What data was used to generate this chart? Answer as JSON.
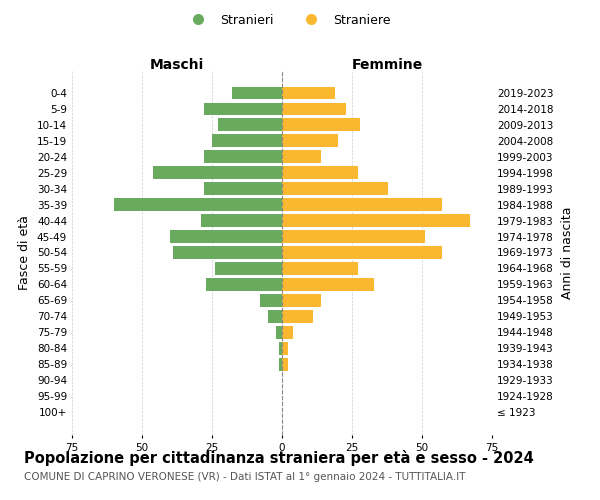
{
  "age_groups": [
    "100+",
    "95-99",
    "90-94",
    "85-89",
    "80-84",
    "75-79",
    "70-74",
    "65-69",
    "60-64",
    "55-59",
    "50-54",
    "45-49",
    "40-44",
    "35-39",
    "30-34",
    "25-29",
    "20-24",
    "15-19",
    "10-14",
    "5-9",
    "0-4"
  ],
  "birth_years": [
    "≤ 1923",
    "1924-1928",
    "1929-1933",
    "1934-1938",
    "1939-1943",
    "1944-1948",
    "1949-1953",
    "1954-1958",
    "1959-1963",
    "1964-1968",
    "1969-1973",
    "1974-1978",
    "1979-1983",
    "1984-1988",
    "1989-1993",
    "1994-1998",
    "1999-2003",
    "2004-2008",
    "2009-2013",
    "2014-2018",
    "2019-2023"
  ],
  "maschi": [
    0,
    0,
    0,
    1,
    1,
    2,
    5,
    8,
    27,
    24,
    39,
    40,
    29,
    60,
    28,
    46,
    28,
    25,
    23,
    28,
    18
  ],
  "femmine": [
    0,
    0,
    0,
    2,
    2,
    4,
    11,
    14,
    33,
    27,
    57,
    51,
    67,
    57,
    38,
    27,
    14,
    20,
    28,
    23,
    19
  ],
  "male_color": "#6aaa5e",
  "female_color": "#f9b82f",
  "bar_height": 0.8,
  "title": "Popolazione per cittadinanza straniera per età e sesso - 2024",
  "subtitle": "COMUNE DI CAPRINO VERONESE (VR) - Dati ISTAT al 1° gennaio 2024 - TUTTITALIA.IT",
  "xlabel_left": "Maschi",
  "xlabel_right": "Femmine",
  "ylabel_left": "Fasce di età",
  "ylabel_right": "Anni di nascita",
  "xlim": 75,
  "legend_male": "Stranieri",
  "legend_female": "Straniere",
  "background_color": "#ffffff",
  "grid_color": "#cccccc",
  "center_line_color": "#888888",
  "title_fontsize": 10.5,
  "subtitle_fontsize": 7.5,
  "tick_fontsize": 7.5,
  "label_fontsize": 9
}
